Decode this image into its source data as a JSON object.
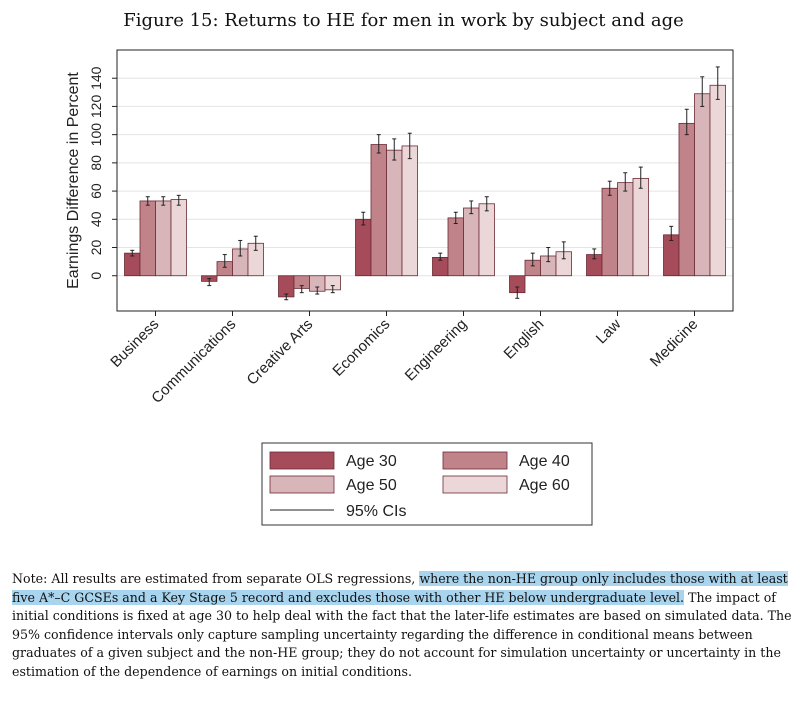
{
  "chart_data": {
    "type": "bar",
    "title": "Figure 15: Returns to HE for men in work by subject and age",
    "xlabel": "",
    "ylabel": "Earnings Difference in Percent",
    "ylim": [
      -25,
      160
    ],
    "yticks": [
      0,
      20,
      40,
      60,
      80,
      100,
      120,
      140
    ],
    "grid": true,
    "legend_position": "bottom",
    "categories": [
      "Business",
      "Communications",
      "Creative Arts",
      "Economics",
      "Engineering",
      "English",
      "Law",
      "Medicine"
    ],
    "series": [
      {
        "name": "Age 30",
        "color": "#a64b59",
        "values": [
          16,
          -4,
          -15,
          40,
          13,
          -12,
          15,
          29
        ],
        "ci_low": [
          14,
          -7,
          -17,
          36,
          11,
          -16,
          12,
          25
        ],
        "ci_high": [
          18,
          -2,
          -13,
          45,
          16,
          -8,
          19,
          35
        ]
      },
      {
        "name": "Age 40",
        "color": "#c08389",
        "values": [
          53,
          10,
          -9,
          93,
          41,
          11,
          62,
          108
        ],
        "ci_low": [
          50,
          6,
          -12,
          87,
          37,
          7,
          57,
          100
        ],
        "ci_high": [
          56,
          15,
          -7,
          100,
          45,
          16,
          67,
          118
        ]
      },
      {
        "name": "Age 50",
        "color": "#d8b5b8",
        "values": [
          53,
          19,
          -11,
          89,
          48,
          14,
          66,
          129
        ],
        "ci_low": [
          50,
          14,
          -13,
          82,
          44,
          10,
          60,
          120
        ],
        "ci_high": [
          56,
          25,
          -8,
          97,
          53,
          20,
          73,
          141
        ]
      },
      {
        "name": "Age 60",
        "color": "#ecd7d8",
        "values": [
          54,
          23,
          -10,
          92,
          51,
          17,
          69,
          135
        ],
        "ci_low": [
          50,
          18,
          -12,
          83,
          46,
          12,
          62,
          125
        ],
        "ci_high": [
          57,
          28,
          -7,
          101,
          56,
          24,
          77,
          148
        ]
      }
    ],
    "ci_label": "95% CIs"
  },
  "note": {
    "prefix": "Note: All results are estimated from separate OLS regressions, ",
    "highlighted": "where the non-HE group only includes those with at least five A*–C GCSEs and a Key Stage 5 record and excludes those with other HE below undergraduate level.",
    "suffix": " The impact of initial conditions is fixed at age 30 to help deal with the fact that the later-life estimates are based on simulated data. The 95% confidence intervals only capture sampling uncertainty regarding the difference in conditional means between graduates of a given subject and the non-HE group; they do not account for simulation uncertainty or uncertainty in the estimation of the dependence of earnings on initial conditions."
  }
}
